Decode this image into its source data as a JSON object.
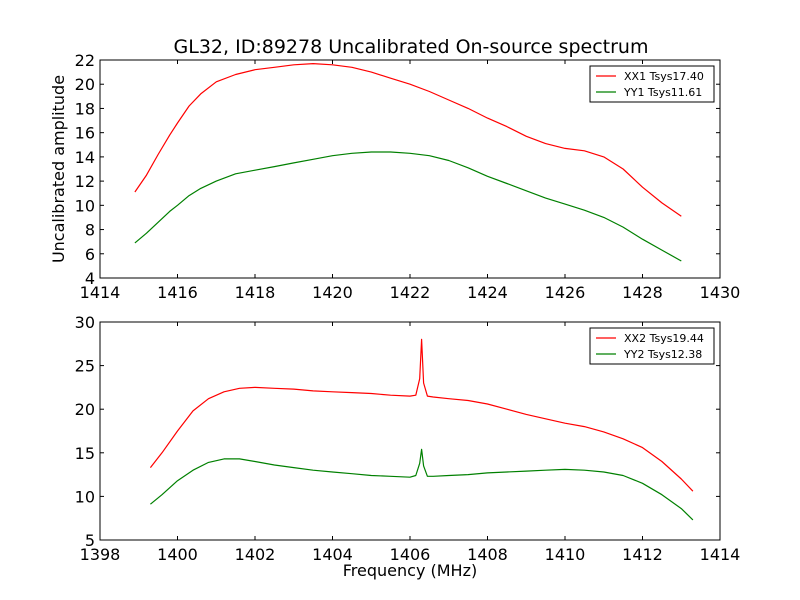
{
  "figure": {
    "title": "GL32, ID:89278 Uncalibrated On-source spectrum"
  },
  "chart_data": [
    {
      "type": "line",
      "title": "GL32, ID:89278 Uncalibrated On-source spectrum",
      "xlabel": "",
      "ylabel": "Uncalibrated amplitude",
      "xlim": [
        1414,
        1430
      ],
      "ylim": [
        4,
        22
      ],
      "xticks": [
        1414,
        1416,
        1418,
        1420,
        1422,
        1424,
        1426,
        1428,
        1430
      ],
      "yticks": [
        4,
        6,
        8,
        10,
        12,
        14,
        16,
        18,
        20,
        22
      ],
      "grid": false,
      "legend_position": "top-right",
      "series": [
        {
          "name": "XX1 Tsys17.40",
          "color": "#ff0000",
          "x": [
            1414.9,
            1415.2,
            1415.5,
            1415.8,
            1416.0,
            1416.3,
            1416.6,
            1417.0,
            1417.5,
            1418.0,
            1418.5,
            1419.0,
            1419.5,
            1420.0,
            1420.5,
            1421.0,
            1421.5,
            1422.0,
            1422.5,
            1423.0,
            1423.5,
            1424.0,
            1424.5,
            1425.0,
            1425.5,
            1426.0,
            1426.5,
            1427.0,
            1427.5,
            1428.0,
            1428.5,
            1429.0
          ],
          "y": [
            11.1,
            12.5,
            14.2,
            15.8,
            16.8,
            18.2,
            19.2,
            20.2,
            20.8,
            21.2,
            21.4,
            21.6,
            21.7,
            21.6,
            21.4,
            21.0,
            20.5,
            20.0,
            19.4,
            18.7,
            18.0,
            17.2,
            16.5,
            15.7,
            15.1,
            14.7,
            14.5,
            14.0,
            13.0,
            11.5,
            10.2,
            9.1
          ]
        },
        {
          "name": "YY1 Tsys11.61",
          "color": "#008000",
          "x": [
            1414.9,
            1415.2,
            1415.5,
            1415.8,
            1416.0,
            1416.3,
            1416.6,
            1417.0,
            1417.5,
            1418.0,
            1418.5,
            1419.0,
            1419.5,
            1420.0,
            1420.5,
            1421.0,
            1421.5,
            1422.0,
            1422.5,
            1423.0,
            1423.5,
            1424.0,
            1424.5,
            1425.0,
            1425.5,
            1426.0,
            1426.5,
            1427.0,
            1427.5,
            1428.0,
            1428.5,
            1429.0
          ],
          "y": [
            6.9,
            7.7,
            8.6,
            9.5,
            10.0,
            10.8,
            11.4,
            12.0,
            12.6,
            12.9,
            13.2,
            13.5,
            13.8,
            14.1,
            14.3,
            14.4,
            14.4,
            14.3,
            14.1,
            13.7,
            13.1,
            12.4,
            11.8,
            11.2,
            10.6,
            10.1,
            9.6,
            9.0,
            8.2,
            7.2,
            6.3,
            5.4
          ]
        }
      ]
    },
    {
      "type": "line",
      "title": "",
      "xlabel": "Frequency (MHz)",
      "ylabel": "",
      "xlim": [
        1398,
        1414
      ],
      "ylim": [
        5,
        30
      ],
      "xticks": [
        1398,
        1400,
        1402,
        1404,
        1406,
        1408,
        1410,
        1412,
        1414
      ],
      "yticks": [
        5,
        10,
        15,
        20,
        25,
        30
      ],
      "grid": false,
      "legend_position": "top-right",
      "series": [
        {
          "name": "XX2 Tsys19.44",
          "color": "#ff0000",
          "x": [
            1399.3,
            1399.6,
            1400.0,
            1400.4,
            1400.8,
            1401.2,
            1401.6,
            1402.0,
            1402.5,
            1403.0,
            1403.5,
            1404.0,
            1404.5,
            1405.0,
            1405.5,
            1406.0,
            1406.15,
            1406.25,
            1406.3,
            1406.35,
            1406.45,
            1406.6,
            1407.0,
            1407.5,
            1408.0,
            1408.5,
            1409.0,
            1409.5,
            1410.0,
            1410.5,
            1411.0,
            1411.5,
            1412.0,
            1412.5,
            1413.0,
            1413.3
          ],
          "y": [
            13.3,
            15.0,
            17.5,
            19.8,
            21.2,
            22.0,
            22.4,
            22.5,
            22.4,
            22.3,
            22.1,
            22.0,
            21.9,
            21.8,
            21.6,
            21.5,
            21.6,
            23.5,
            28.0,
            23.0,
            21.5,
            21.4,
            21.2,
            21.0,
            20.6,
            20.0,
            19.4,
            18.9,
            18.4,
            18.0,
            17.4,
            16.6,
            15.6,
            14.0,
            12.0,
            10.6
          ]
        },
        {
          "name": "YY2 Tsys12.38",
          "color": "#008000",
          "x": [
            1399.3,
            1399.6,
            1400.0,
            1400.4,
            1400.8,
            1401.2,
            1401.6,
            1402.0,
            1402.5,
            1403.0,
            1403.5,
            1404.0,
            1404.5,
            1405.0,
            1405.5,
            1406.0,
            1406.15,
            1406.25,
            1406.3,
            1406.35,
            1406.45,
            1406.6,
            1407.0,
            1407.5,
            1408.0,
            1408.5,
            1409.0,
            1409.5,
            1410.0,
            1410.5,
            1411.0,
            1411.5,
            1412.0,
            1412.5,
            1413.0,
            1413.3
          ],
          "y": [
            9.1,
            10.2,
            11.8,
            13.0,
            13.9,
            14.3,
            14.3,
            14.0,
            13.6,
            13.3,
            13.0,
            12.8,
            12.6,
            12.4,
            12.3,
            12.2,
            12.4,
            13.8,
            15.4,
            13.5,
            12.3,
            12.3,
            12.4,
            12.5,
            12.7,
            12.8,
            12.9,
            13.0,
            13.1,
            13.0,
            12.8,
            12.4,
            11.5,
            10.2,
            8.6,
            7.3
          ]
        }
      ]
    }
  ]
}
